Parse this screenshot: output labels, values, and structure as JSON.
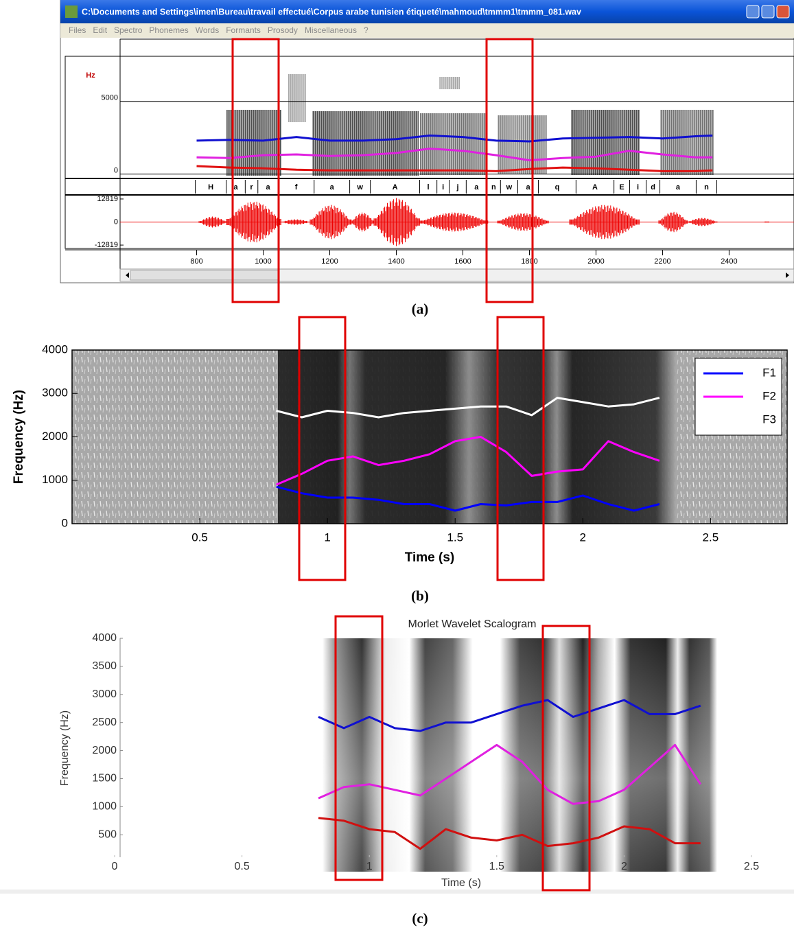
{
  "window": {
    "title": "C:\\Documents and Settings\\imen\\Bureau\\travail effectué\\Corpus arabe tunisien étiqueté\\mahmoud\\tmmm1\\tmmm_081.wav",
    "menu": [
      "Files",
      "Edit",
      "Spectro",
      "Phonemes",
      "Words",
      "Formants",
      "Prosody",
      "Miscellaneous",
      "?"
    ]
  },
  "captions": [
    "(a)",
    "(b)",
    "(c)"
  ],
  "chart_data": [
    {
      "type": "line",
      "ylabel": "Hz",
      "x": [
        800,
        900,
        1000,
        1100,
        1200,
        1300,
        1400,
        1500,
        1600,
        1700,
        1800,
        1900,
        2000,
        2100,
        2200,
        2300,
        2350
      ],
      "series": [
        {
          "color": "#1010d0",
          "values": [
            2300,
            2350,
            2300,
            2550,
            2300,
            2300,
            2400,
            2650,
            2550,
            2300,
            2250,
            2450,
            2500,
            2550,
            2450,
            2600,
            2650
          ]
        },
        {
          "color": "#e020e0",
          "values": [
            1150,
            1100,
            1300,
            1350,
            1250,
            1300,
            1450,
            1750,
            1600,
            1300,
            950,
            1100,
            1200,
            1600,
            1350,
            1150,
            1150
          ]
        },
        {
          "color": "#e01010",
          "values": [
            550,
            450,
            400,
            300,
            250,
            250,
            250,
            250,
            250,
            200,
            350,
            450,
            400,
            300,
            200,
            200,
            250
          ]
        }
      ],
      "xlim": [
        570,
        2595
      ],
      "xticks": [
        800,
        1000,
        1200,
        1400,
        1600,
        1800,
        2000,
        2200,
        2400
      ],
      "ylim": [
        -300,
        8100
      ],
      "yticks": [
        0,
        5000
      ],
      "phonemes": {
        "labels": [
          "H",
          "a",
          "r",
          "a",
          "f",
          "a",
          "w",
          "A",
          "l",
          "i",
          "j",
          "a",
          "n",
          "w",
          "a",
          "q",
          "A",
          "E",
          "i",
          "d",
          "a",
          "n"
        ],
        "bounds": [
          796,
          889,
          946,
          984,
          1045,
          1153,
          1260,
          1322,
          1470,
          1522,
          1559,
          1610,
          1672,
          1713,
          1765,
          1827,
          1940,
          2054,
          2101,
          2151,
          2192,
          2301,
          2363
        ]
      }
    },
    {
      "type": "waveform",
      "ylim": [
        -14700,
        14700
      ],
      "yticks": [
        -12819,
        0,
        12819
      ]
    },
    {
      "type": "line",
      "xlabel": "Time (s)",
      "ylabel": "Frequency (Hz)",
      "x": [
        0.8,
        0.9,
        1.0,
        1.1,
        1.2,
        1.3,
        1.4,
        1.5,
        1.6,
        1.7,
        1.8,
        1.9,
        2.0,
        2.1,
        2.2,
        2.3
      ],
      "series": [
        {
          "name": "F1",
          "color": "#0000ff",
          "values": [
            850,
            700,
            600,
            600,
            550,
            450,
            450,
            300,
            450,
            420,
            500,
            500,
            650,
            450,
            300,
            450
          ]
        },
        {
          "name": "F2",
          "color": "#ff00ff",
          "values": [
            900,
            1150,
            1450,
            1550,
            1350,
            1450,
            1600,
            1900,
            2000,
            1650,
            1100,
            1200,
            1250,
            1900,
            1650,
            1450
          ]
        },
        {
          "name": "F3",
          "color": "#ffffff",
          "values": [
            2600,
            2450,
            2600,
            2550,
            2450,
            2550,
            2600,
            2650,
            2700,
            2700,
            2500,
            2900,
            2800,
            2700,
            2750,
            2900
          ]
        }
      ],
      "xlim": [
        0,
        2.8
      ],
      "xticks": [
        0.5,
        1,
        1.5,
        2,
        2.5
      ],
      "ylim": [
        0,
        4000
      ],
      "yticks": [
        0,
        1000,
        2000,
        3000,
        4000
      ],
      "legend": "upper right"
    },
    {
      "type": "line",
      "title": "Morlet Wavelet Scalogram",
      "xlabel": "Time (s)",
      "ylabel": "Frequency (Hz)",
      "x": [
        0.8,
        0.9,
        1.0,
        1.1,
        1.2,
        1.3,
        1.4,
        1.5,
        1.6,
        1.7,
        1.8,
        1.9,
        2.0,
        2.1,
        2.2,
        2.3
      ],
      "series": [
        {
          "color": "#1010d0",
          "values": [
            2600,
            2400,
            2600,
            2400,
            2350,
            2500,
            2500,
            2650,
            2800,
            2900,
            2600,
            2750,
            2900,
            2650,
            2650,
            2800
          ]
        },
        {
          "color": "#e020e0",
          "values": [
            1150,
            1350,
            1400,
            1300,
            1200,
            1500,
            1800,
            2100,
            1800,
            1300,
            1050,
            1100,
            1300,
            1700,
            2100,
            1400
          ]
        },
        {
          "color": "#d01010",
          "values": [
            800,
            750,
            600,
            550,
            250,
            600,
            450,
            400,
            500,
            300,
            350,
            450,
            650,
            600,
            350,
            350
          ]
        }
      ],
      "xlim": [
        0,
        2.5
      ],
      "xticks": [
        0,
        0.5,
        1,
        1.5,
        2,
        2.5
      ],
      "ylim": [
        100,
        4000
      ],
      "yticks": [
        500,
        1000,
        1500,
        2000,
        2500,
        3000,
        3500,
        4000
      ]
    }
  ]
}
